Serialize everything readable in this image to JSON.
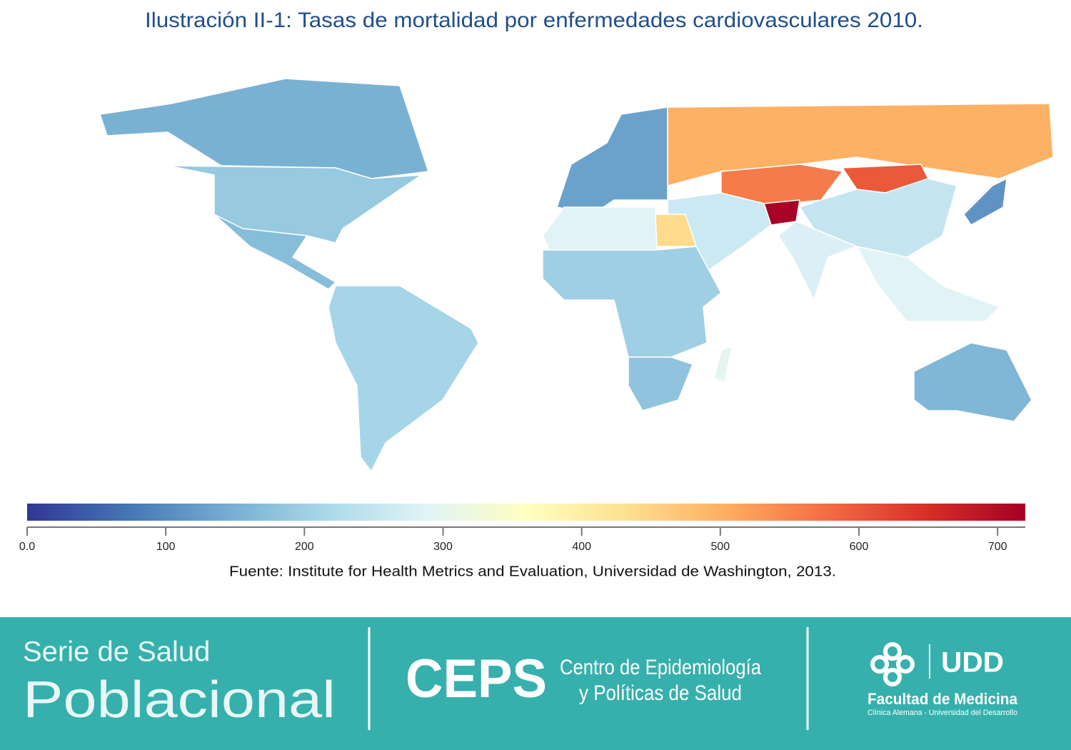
{
  "title": "Ilustración II-1: Tasas de mortalidad por enfermedades cardiovasculares 2010.",
  "map": {
    "region_values": [
      150,
      190,
      170,
      210,
      130,
      500,
      560,
      600,
      715,
      250,
      280,
      260,
      290,
      440,
      200,
      180,
      290,
      160,
      110,
      300
    ],
    "colorscale": {
      "colors": [
        "#313695",
        "#4575b4",
        "#74add1",
        "#abd9e9",
        "#e0f3f8",
        "#ffffbf",
        "#fee090",
        "#fdae61",
        "#f46d43",
        "#d73027",
        "#a50026"
      ],
      "lim": [
        0,
        720
      ],
      "ticks": [
        {
          "value": 0,
          "label": "0.0"
        },
        100,
        200,
        300,
        400,
        500,
        600,
        700
      ]
    }
  },
  "source": "Fuente: Institute for Health Metrics and Evaluation, Universidad de Washington, 2013.",
  "footer": {
    "series_line1": "Serie de Salud",
    "series_line2": "Poblacional",
    "ceps": "CEPS",
    "ceps_line1": "Centro de Epidemiología",
    "ceps_line2": "y Políticas de Salud",
    "udd": "UDD",
    "faculty": "Facultad de Medicina",
    "faculty_sub": "Clínica Alemana - Universidad del Desarrollo"
  }
}
